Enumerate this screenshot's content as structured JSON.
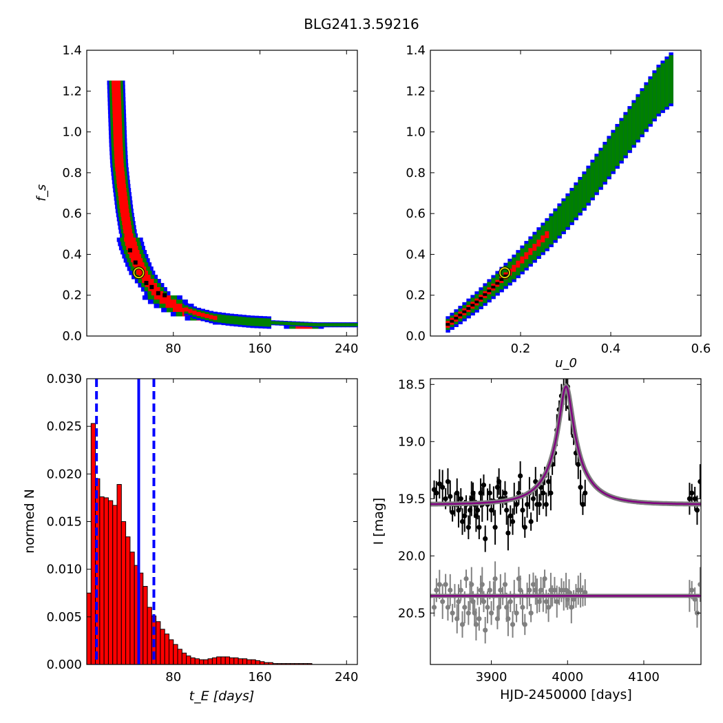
{
  "figure_title": "BLG241.3.59216",
  "chart_data": [
    {
      "id": "fs_vs_tE",
      "type": "heatmap",
      "title": "",
      "xlabel": "",
      "ylabel": "f_s",
      "xlim": [
        0,
        250
      ],
      "ylim": [
        0.0,
        1.4
      ],
      "xticks": [
        80,
        160,
        240
      ],
      "yticks": [
        0.0,
        0.2,
        0.4,
        0.6,
        0.8,
        1.0,
        1.2,
        1.4
      ],
      "levels": [
        {
          "name": "outer",
          "color": "#0000ff"
        },
        {
          "name": "middle",
          "color": "#008000"
        },
        {
          "name": "inner",
          "color": "#ff0000"
        },
        {
          "name": "best",
          "color": "#000000"
        }
      ],
      "ridge": [
        [
          27,
          1.26
        ],
        [
          28,
          1.1
        ],
        [
          29,
          0.95
        ],
        [
          30,
          0.85
        ],
        [
          32,
          0.75
        ],
        [
          35,
          0.62
        ],
        [
          38,
          0.52
        ],
        [
          42,
          0.44
        ],
        [
          47,
          0.37
        ],
        [
          52,
          0.31
        ],
        [
          58,
          0.27
        ],
        [
          65,
          0.22
        ],
        [
          72,
          0.19
        ],
        [
          80,
          0.16
        ],
        [
          90,
          0.13
        ],
        [
          100,
          0.11
        ],
        [
          115,
          0.09
        ],
        [
          130,
          0.08
        ],
        [
          150,
          0.07
        ],
        [
          170,
          0.065
        ],
        [
          190,
          0.06
        ],
        [
          210,
          0.055
        ],
        [
          230,
          0.055
        ],
        [
          250,
          0.055
        ]
      ],
      "best_fit": {
        "x": 48,
        "y": 0.31
      }
    },
    {
      "id": "fs_vs_u0",
      "type": "heatmap",
      "title": "",
      "xlabel": "u_0",
      "ylabel": "",
      "xlim": [
        0.0,
        0.6
      ],
      "ylim": [
        0.0,
        1.4
      ],
      "xticks": [
        0.2,
        0.4,
        0.6
      ],
      "yticks": [
        0.0,
        0.2,
        0.4,
        0.6,
        0.8,
        1.0,
        1.2,
        1.4
      ],
      "levels": [
        {
          "name": "outer",
          "color": "#0000ff"
        },
        {
          "name": "middle",
          "color": "#008000"
        },
        {
          "name": "inner",
          "color": "#ff0000"
        },
        {
          "name": "best",
          "color": "#000000"
        }
      ],
      "ridge": [
        [
          0.03,
          0.05
        ],
        [
          0.06,
          0.1
        ],
        [
          0.1,
          0.17
        ],
        [
          0.14,
          0.25
        ],
        [
          0.18,
          0.33
        ],
        [
          0.22,
          0.42
        ],
        [
          0.26,
          0.51
        ],
        [
          0.3,
          0.61
        ],
        [
          0.34,
          0.72
        ],
        [
          0.38,
          0.84
        ],
        [
          0.42,
          0.96
        ],
        [
          0.46,
          1.08
        ],
        [
          0.5,
          1.2
        ],
        [
          0.53,
          1.26
        ]
      ],
      "inner_extent": [
        0.03,
        0.26
      ],
      "best_fit": {
        "x": 0.165,
        "y": 0.31
      }
    },
    {
      "id": "tE_histogram",
      "type": "bar",
      "title": "",
      "xlabel": "t_E [days]",
      "ylabel": "normed N",
      "xlim": [
        0,
        250
      ],
      "ylim": [
        0.0,
        0.03
      ],
      "xticks": [
        80,
        160,
        240
      ],
      "yticks": [
        0.0,
        0.005,
        0.01,
        0.015,
        0.02,
        0.025,
        0.03
      ],
      "bar_color": "#ff0000",
      "bin_width": 4,
      "values": [
        0.0075,
        0.0253,
        0.0195,
        0.0176,
        0.0175,
        0.0172,
        0.0167,
        0.0189,
        0.015,
        0.0134,
        0.0118,
        0.0104,
        0.0096,
        0.0082,
        0.006,
        0.0051,
        0.0045,
        0.0037,
        0.0032,
        0.0026,
        0.0021,
        0.0016,
        0.0012,
        0.0009,
        0.0007,
        0.0006,
        0.0005,
        0.0005,
        0.0006,
        0.0007,
        0.0008,
        0.0008,
        0.0008,
        0.0007,
        0.0007,
        0.0006,
        0.0006,
        0.0005,
        0.0005,
        0.0004,
        0.0003,
        0.0002,
        0.0002,
        0.0001,
        0.0001,
        0.0001,
        0.0001,
        0.0001,
        0.0001,
        0.0001,
        0.0001,
        0.0001
      ],
      "vlines": [
        {
          "x": 48,
          "style": "solid",
          "color": "#0000ff"
        },
        {
          "x": 9,
          "style": "dashed",
          "color": "#0000ff"
        },
        {
          "x": 62,
          "style": "dashed",
          "color": "#0000ff"
        }
      ]
    },
    {
      "id": "light_curve",
      "type": "scatter",
      "title": "",
      "xlabel": "HJD-2450000 [days]",
      "ylabel": "I [mag]",
      "xlim": [
        3820,
        4175
      ],
      "ylim": [
        20.95,
        18.45
      ],
      "inverted_y": true,
      "xticks": [
        3900,
        4000,
        4100
      ],
      "yticks": [
        18.5,
        19.0,
        19.5,
        20.0,
        20.5
      ],
      "model": {
        "t0": 3998,
        "tE": 48,
        "u0": 0.165,
        "fs": 0.31,
        "I_base": 19.55,
        "color": "#800080"
      },
      "residual_baseline": 20.35,
      "series": [
        {
          "color": "#000000",
          "points": [
            [
              3825,
              19.42
            ],
            [
              3828,
              19.45
            ],
            [
              3832,
              19.37
            ],
            [
              3836,
              19.4
            ],
            [
              3840,
              19.5
            ],
            [
              3843,
              19.35
            ],
            [
              3846,
              19.48
            ],
            [
              3849,
              19.62
            ],
            [
              3852,
              19.55
            ],
            [
              3855,
              19.45
            ],
            [
              3857,
              19.6
            ],
            [
              3860,
              19.5
            ],
            [
              3862,
              19.7
            ],
            [
              3865,
              19.65
            ],
            [
              3867,
              19.55
            ],
            [
              3870,
              19.75
            ],
            [
              3872,
              19.6
            ],
            [
              3874,
              19.5
            ],
            [
              3876,
              19.45
            ],
            [
              3878,
              19.55
            ],
            [
              3880,
              19.65
            ],
            [
              3882,
              19.6
            ],
            [
              3884,
              19.75
            ],
            [
              3886,
              19.45
            ],
            [
              3888,
              19.55
            ],
            [
              3890,
              19.38
            ],
            [
              3892,
              19.85
            ],
            [
              3895,
              19.55
            ],
            [
              3898,
              19.45
            ],
            [
              3900,
              19.6
            ],
            [
              3903,
              19.52
            ],
            [
              3905,
              19.75
            ],
            [
              3908,
              19.4
            ],
            [
              3910,
              19.35
            ],
            [
              3912,
              19.5
            ],
            [
              3915,
              19.5
            ],
            [
              3918,
              19.45
            ],
            [
              3920,
              19.6
            ],
            [
              3922,
              19.8
            ],
            [
              3925,
              19.65
            ],
            [
              3928,
              19.7
            ],
            [
              3930,
              19.5
            ],
            [
              3933,
              19.55
            ],
            [
              3936,
              19.45
            ],
            [
              3938,
              19.3
            ],
            [
              3941,
              19.6
            ],
            [
              3944,
              19.75
            ],
            [
              3947,
              19.55
            ],
            [
              3950,
              19.45
            ],
            [
              3952,
              19.7
            ],
            [
              3955,
              19.5
            ],
            [
              3958,
              19.35
            ],
            [
              3960,
              19.55
            ],
            [
              3963,
              19.55
            ],
            [
              3965,
              19.4
            ],
            [
              3968,
              19.45
            ],
            [
              3970,
              19.3
            ],
            [
              3972,
              19.55
            ],
            [
              3975,
              19.35
            ],
            [
              3978,
              19.45
            ],
            [
              3980,
              19.2
            ],
            [
              3983,
              19.1
            ],
            [
              3986,
              18.9
            ],
            [
              3989,
              18.72
            ],
            [
              3992,
              18.6
            ],
            [
              3995,
              18.55
            ],
            [
              3998,
              18.58
            ],
            [
              4000,
              18.52
            ],
            [
              4002,
              18.7
            ],
            [
              4005,
              18.8
            ],
            [
              4008,
              18.95
            ],
            [
              4011,
              19.1
            ],
            [
              4014,
              19.2
            ],
            [
              4017,
              19.4
            ],
            [
              4020,
              19.55
            ],
            [
              4023,
              19.45
            ],
            [
              4160,
              19.5
            ],
            [
              4163,
              19.45
            ],
            [
              4167,
              19.5
            ],
            [
              4170,
              19.6
            ],
            [
              4174,
              19.35
            ]
          ]
        },
        {
          "color": "#808080",
          "points": [
            [
              3825,
              20.45
            ],
            [
              3828,
              20.3
            ],
            [
              3832,
              20.25
            ],
            [
              3836,
              20.4
            ],
            [
              3840,
              20.25
            ],
            [
              3843,
              20.45
            ],
            [
              3846,
              20.3
            ],
            [
              3849,
              20.5
            ],
            [
              3852,
              20.35
            ],
            [
              3855,
              20.55
            ],
            [
              3857,
              20.4
            ],
            [
              3860,
              20.3
            ],
            [
              3862,
              20.6
            ],
            [
              3865,
              20.45
            ],
            [
              3867,
              20.2
            ],
            [
              3870,
              20.5
            ],
            [
              3872,
              20.35
            ],
            [
              3874,
              20.25
            ],
            [
              3876,
              20.4
            ],
            [
              3878,
              20.5
            ],
            [
              3880,
              20.6
            ],
            [
              3882,
              20.35
            ],
            [
              3884,
              20.55
            ],
            [
              3886,
              20.3
            ],
            [
              3888,
              20.25
            ],
            [
              3890,
              20.4
            ],
            [
              3892,
              20.65
            ],
            [
              3895,
              20.45
            ],
            [
              3898,
              20.3
            ],
            [
              3900,
              20.5
            ],
            [
              3903,
              20.35
            ],
            [
              3905,
              20.2
            ],
            [
              3908,
              20.55
            ],
            [
              3910,
              20.45
            ],
            [
              3912,
              20.3
            ],
            [
              3915,
              20.35
            ],
            [
              3918,
              20.25
            ],
            [
              3920,
              20.45
            ],
            [
              3922,
              20.55
            ],
            [
              3925,
              20.4
            ],
            [
              3928,
              20.6
            ],
            [
              3930,
              20.35
            ],
            [
              3933,
              20.5
            ],
            [
              3936,
              20.2
            ],
            [
              3938,
              20.3
            ],
            [
              3941,
              20.45
            ],
            [
              3944,
              20.6
            ],
            [
              3947,
              20.35
            ],
            [
              3950,
              20.3
            ],
            [
              3952,
              20.5
            ],
            [
              3955,
              20.25
            ],
            [
              3958,
              20.3
            ],
            [
              3960,
              20.35
            ],
            [
              3963,
              20.4
            ],
            [
              3965,
              20.3
            ],
            [
              3968,
              20.35
            ],
            [
              3970,
              20.2
            ],
            [
              3972,
              20.4
            ],
            [
              3975,
              20.45
            ],
            [
              3978,
              20.3
            ],
            [
              3980,
              20.35
            ],
            [
              3983,
              20.3
            ],
            [
              3986,
              20.4
            ],
            [
              3989,
              20.35
            ],
            [
              3992,
              20.3
            ],
            [
              3995,
              20.35
            ],
            [
              3998,
              20.3
            ],
            [
              4000,
              20.38
            ],
            [
              4002,
              20.32
            ],
            [
              4005,
              20.45
            ],
            [
              4008,
              20.38
            ],
            [
              4011,
              20.35
            ],
            [
              4014,
              20.3
            ],
            [
              4017,
              20.3
            ],
            [
              4020,
              20.35
            ],
            [
              4023,
              20.32
            ],
            [
              4160,
              20.35
            ],
            [
              4163,
              20.3
            ],
            [
              4167,
              20.38
            ],
            [
              4170,
              20.5
            ],
            [
              4174,
              20.25
            ]
          ]
        }
      ]
    }
  ]
}
